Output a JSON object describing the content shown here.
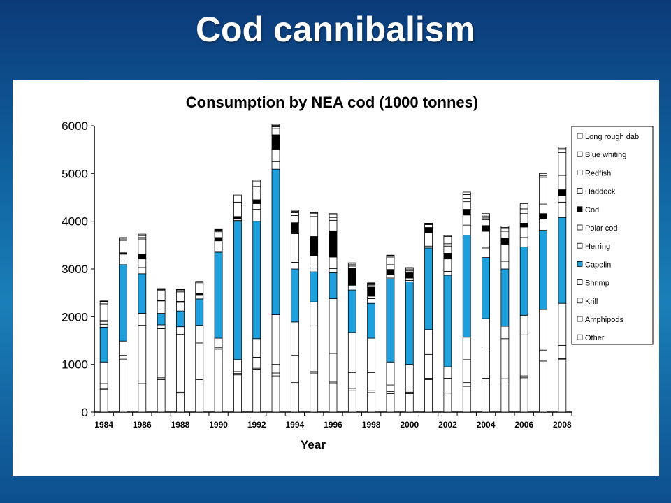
{
  "slide": {
    "title": "Cod cannibalism"
  },
  "chart_data": {
    "type": "bar",
    "stacked": true,
    "title": "Consumption by NEA cod (1000 tonnes)",
    "xlabel": "Year",
    "ylabel": "",
    "ylim": [
      0,
      6000
    ],
    "yticks": [
      0,
      1000,
      2000,
      3000,
      4000,
      5000,
      6000
    ],
    "grid": false,
    "legend_position": "right",
    "categories": [
      "1984",
      "1985",
      "1986",
      "1987",
      "1988",
      "1989",
      "1990",
      "1991",
      "1992",
      "1993",
      "1994",
      "1995",
      "1996",
      "1997",
      "1998",
      "1999",
      "2000",
      "2001",
      "2002",
      "2003",
      "2004",
      "2005",
      "2006",
      "2007",
      "2008"
    ],
    "xtick_labels": [
      "1984",
      "",
      "1986",
      "",
      "1988",
      "",
      "1990",
      "",
      "1992",
      "",
      "1994",
      "",
      "1996",
      "",
      "1998",
      "",
      "2000",
      "",
      "2002",
      "",
      "2004",
      "",
      "2006",
      "",
      "2008"
    ],
    "series": [
      {
        "name": "Other",
        "color": "#ffffff",
        "values": [
          480,
          1100,
          600,
          680,
          400,
          650,
          1320,
          780,
          900,
          760,
          620,
          820,
          600,
          450,
          410,
          390,
          390,
          680,
          360,
          540,
          650,
          650,
          720,
          1030,
          1100
        ]
      },
      {
        "name": "Amphipods",
        "color": "#ffffff",
        "values": [
          20,
          30,
          50,
          40,
          20,
          30,
          30,
          30,
          20,
          60,
          30,
          30,
          30,
          50,
          40,
          40,
          30,
          30,
          40,
          80,
          60,
          50,
          40,
          40,
          20
        ]
      },
      {
        "name": "Krill",
        "color": "#ffffff",
        "values": [
          100,
          60,
          1170,
          1030,
          1210,
          770,
          120,
          40,
          230,
          180,
          540,
          960,
          600,
          330,
          380,
          140,
          130,
          500,
          310,
          480,
          660,
          840,
          860,
          230,
          280
        ]
      },
      {
        "name": "Shrimp",
        "color": "#ffffff",
        "values": [
          450,
          300,
          250,
          80,
          160,
          370,
          80,
          250,
          390,
          1040,
          700,
          500,
          1150,
          840,
          720,
          480,
          450,
          520,
          240,
          470,
          590,
          260,
          410,
          850,
          880
        ]
      },
      {
        "name": "Capelin",
        "color": "#1ea0dc",
        "values": [
          730,
          1600,
          830,
          240,
          330,
          550,
          1800,
          2900,
          2460,
          3050,
          1110,
          630,
          540,
          890,
          730,
          1740,
          1730,
          1710,
          1920,
          2140,
          1280,
          1200,
          1430,
          1660,
          1800
        ]
      },
      {
        "name": "Herring",
        "color": "#ffffff",
        "values": [
          60,
          80,
          130,
          30,
          40,
          20,
          20,
          20,
          250,
          160,
          140,
          80,
          90,
          100,
          100,
          20,
          30,
          40,
          80,
          210,
          200,
          160,
          200,
          250,
          320
        ]
      },
      {
        "name": "Polar cod",
        "color": "#ffffff",
        "values": [
          60,
          140,
          180,
          230,
          140,
          70,
          220,
          30,
          120,
          260,
          600,
          260,
          240,
          0,
          50,
          80,
          50,
          280,
          260,
          210,
          350,
          360,
          220,
          0,
          130
        ]
      },
      {
        "name": "Cod",
        "color": "#000000",
        "values": [
          20,
          30,
          100,
          20,
          20,
          30,
          70,
          50,
          80,
          300,
          230,
          400,
          550,
          350,
          190,
          100,
          110,
          90,
          120,
          120,
          120,
          130,
          80,
          100,
          130
        ]
      },
      {
        "name": "Haddock",
        "color": "#ffffff",
        "values": [
          350,
          260,
          320,
          200,
          200,
          200,
          120,
          300,
          180,
          130,
          150,
          420,
          220,
          50,
          30,
          100,
          40,
          20,
          150,
          160,
          120,
          140,
          200,
          200,
          300
        ]
      },
      {
        "name": "Redfish",
        "color": "#ffffff",
        "values": [
          40,
          30,
          30,
          20,
          20,
          30,
          30,
          150,
          100,
          40,
          60,
          60,
          60,
          30,
          20,
          160,
          20,
          60,
          50,
          60,
          40,
          60,
          100,
          560,
          480
        ]
      },
      {
        "name": "Blue whiting",
        "color": "#ffffff",
        "values": [
          10,
          20,
          40,
          10,
          20,
          10,
          10,
          0,
          100,
          30,
          30,
          20,
          60,
          30,
          30,
          30,
          20,
          20,
          150,
          90,
          40,
          20,
          80,
          30,
          80
        ]
      },
      {
        "name": "Long rough dab",
        "color": "#ffffff",
        "values": [
          10,
          10,
          30,
          10,
          10,
          10,
          10,
          0,
          30,
          20,
          20,
          10,
          20,
          10,
          10,
          10,
          30,
          10,
          20,
          50,
          50,
          30,
          30,
          50,
          30
        ]
      }
    ]
  }
}
